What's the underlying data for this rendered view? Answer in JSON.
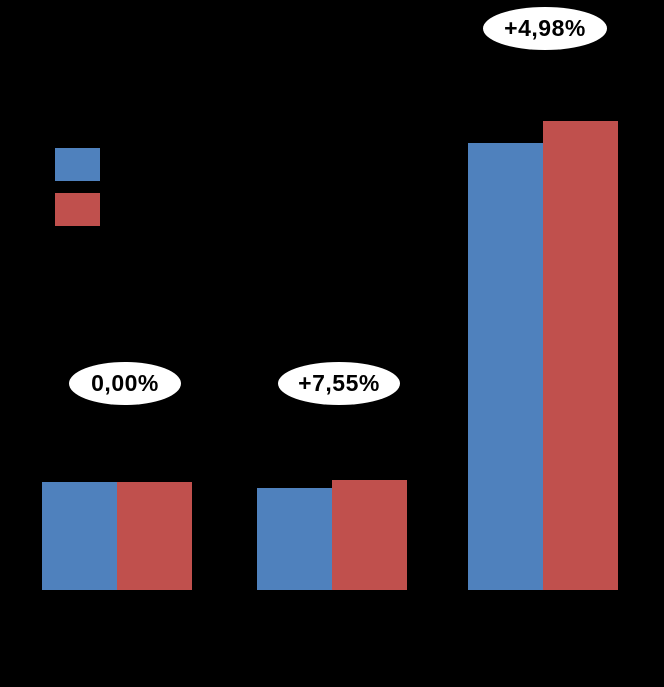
{
  "chart_data": {
    "type": "bar",
    "title": "",
    "xlabel": "",
    "ylabel": "",
    "background": "#000000",
    "axes_visible": false,
    "grid": false,
    "legend_position": "top-left",
    "categories": [
      "",
      "",
      ""
    ],
    "series": [
      {
        "name": "",
        "color": "#4F81BD",
        "values": [
          108,
          102,
          447
        ]
      },
      {
        "name": "",
        "color": "#C0504D",
        "values": [
          108,
          110,
          469
        ]
      }
    ],
    "value_note": "values estimated from bar pixel heights; axis tick labels not visible on black background",
    "annotations": [
      {
        "text": "0,00%",
        "group": 0
      },
      {
        "text": "+7,55%",
        "group": 1
      },
      {
        "text": "+4,98%",
        "group": 2
      }
    ]
  },
  "colors": {
    "series1": "#4F81BD",
    "series2": "#C0504D",
    "callout_fill": "#ffffff",
    "callout_text": "#000000",
    "background": "#000000"
  }
}
